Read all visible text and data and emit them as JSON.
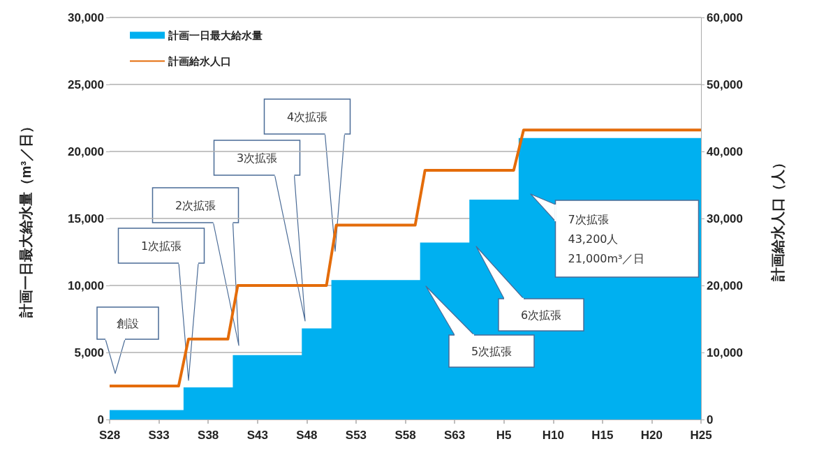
{
  "chart_data": {
    "type": "area",
    "ylabel": "計画一日最大給水量（m³／日）",
    "y2label": "計画給水人口（人）",
    "categories": [
      "S28",
      null,
      null,
      null,
      null,
      "S33",
      null,
      null,
      null,
      null,
      "S38",
      null,
      null,
      null,
      null,
      "S43",
      null,
      null,
      null,
      null,
      "S48",
      null,
      null,
      null,
      null,
      "S53",
      null,
      null,
      null,
      null,
      "S58",
      null,
      null,
      null,
      null,
      "S63",
      null,
      null,
      null,
      null,
      "H5",
      null,
      null,
      null,
      null,
      "H10",
      null,
      null,
      null,
      null,
      "H15",
      null,
      null,
      null,
      null,
      "H20",
      null,
      null,
      null,
      null,
      "H25"
    ],
    "ylim": [
      0,
      30000
    ],
    "yticks": [
      0,
      {
        "value": 5000,
        "label": "5,000"
      },
      {
        "value": 10000,
        "label": "10,000"
      },
      {
        "value": 15000,
        "label": "15,000"
      },
      {
        "value": 20000,
        "label": "20,000"
      },
      {
        "value": 25000,
        "label": "25,000"
      },
      {
        "value": 30000,
        "label": "30,000"
      }
    ],
    "y2lim": [
      0,
      60000
    ],
    "y2ticks": [
      0,
      {
        "value": 10000,
        "label": "10,000"
      },
      {
        "value": 20000,
        "label": "20,000"
      },
      {
        "value": 30000,
        "label": "30,000"
      },
      {
        "value": 40000,
        "label": "40,000"
      },
      {
        "value": 50000,
        "label": "50,000"
      },
      {
        "value": 60000,
        "label": "60,000"
      }
    ],
    "grid": "y",
    "legend": "top left",
    "marker": "none",
    "series": [
      {
        "name": "計画一日最大給水量",
        "color": "#00b0f0",
        "values": [
          700,
          700,
          700,
          700,
          700,
          700,
          700,
          700,
          2400,
          2400,
          2400,
          2400,
          2400,
          4800,
          4800,
          4800,
          4800,
          4800,
          4800,
          4800,
          6800,
          6800,
          6800,
          10400,
          10400,
          10400,
          10400,
          10400,
          10400,
          10400,
          10400,
          10400,
          13200,
          13200,
          13200,
          13200,
          13200,
          16400,
          16400,
          16400,
          16400,
          16400,
          21000,
          21000,
          21000,
          21000,
          21000,
          21000,
          21000,
          21000,
          21000,
          21000,
          21000,
          21000,
          21000,
          21000,
          21000,
          21000,
          21000,
          21000,
          21000
        ]
      },
      {
        "name": "計画給水人口",
        "type": "line",
        "axis": "y2",
        "color": "#e46c0a",
        "values": [
          5000,
          5000,
          5000,
          5000,
          5000,
          5000,
          5000,
          5000,
          12000,
          12000,
          12000,
          12000,
          12000,
          20000,
          20000,
          20000,
          20000,
          20000,
          20000,
          20000,
          20000,
          20000,
          20000,
          29000,
          29000,
          29000,
          29000,
          29000,
          29000,
          29000,
          29000,
          29000,
          37200,
          37200,
          37200,
          37200,
          37200,
          37200,
          37200,
          37200,
          37200,
          37200,
          43200,
          43200,
          43200,
          43200,
          43200,
          43200,
          43200,
          43200,
          43200,
          43200,
          43200,
          43200,
          43200,
          43200,
          43200,
          43200,
          43200,
          43200,
          43200
        ]
      }
    ],
    "annotations": [
      "創設",
      "1次拡張",
      "2次拡張",
      "3次拡張",
      "4次拡張",
      "5次拡張",
      "6次拡張",
      "7次拡張\n43,200人\n21,000m³／日"
    ]
  }
}
